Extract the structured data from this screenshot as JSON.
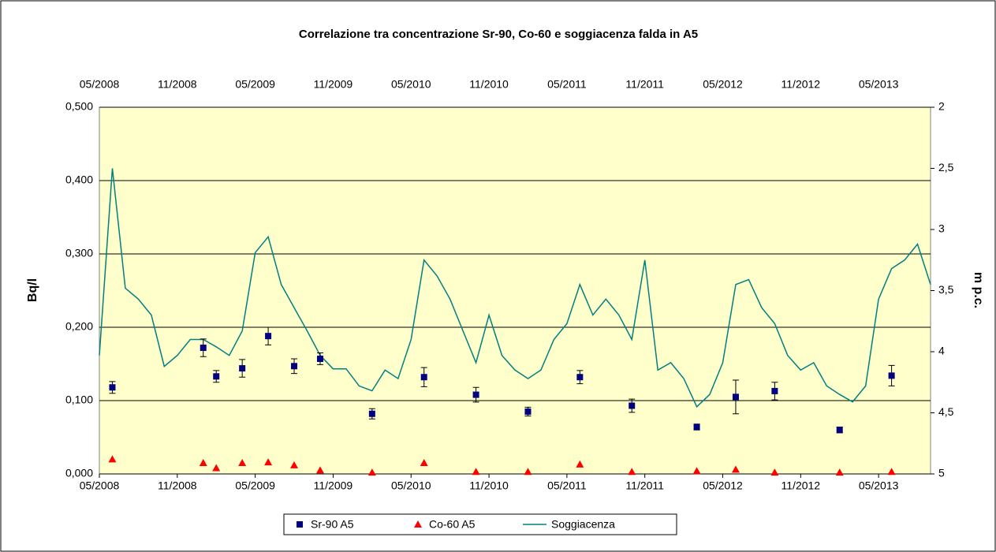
{
  "chart_data": {
    "type": "combo",
    "title": "Correlazione tra concentrazione Sr-90, Co-60 e soggiacenza falda in A5",
    "ylabel": "Bq/l",
    "y2label": "m p.c.",
    "xlim": [
      "05/2008",
      "09/2013"
    ],
    "xticks": [
      "05/2008",
      "11/2008",
      "05/2009",
      "11/2009",
      "05/2010",
      "11/2010",
      "05/2011",
      "11/2011",
      "05/2012",
      "11/2012",
      "05/2013"
    ],
    "ylim": [
      0,
      0.5
    ],
    "yticks": [
      {
        "value": 0,
        "label": "0,000"
      },
      {
        "value": 0.1,
        "label": "0,100"
      },
      {
        "value": 0.2,
        "label": "0,200"
      },
      {
        "value": 0.3,
        "label": "0,300"
      },
      {
        "value": 0.4,
        "label": "0,400"
      },
      {
        "value": 0.5,
        "label": "0,500"
      }
    ],
    "y2lim": [
      5,
      2
    ],
    "y2ticks": [
      2,
      {
        "value": 2.5,
        "label": "2,5"
      },
      3,
      {
        "value": 3.5,
        "label": "3,5"
      },
      4,
      {
        "value": 4.5,
        "label": "4,5"
      },
      5
    ],
    "grid": true,
    "legend": "bottom",
    "series": [
      {
        "name": "Sr-90 A5",
        "type": "scatter",
        "marker": "square",
        "color": "#000080",
        "x": [
          "06/2008",
          "01/2009",
          "02/2009",
          "04/2009",
          "06/2009",
          "08/2009",
          "10/2009",
          "02/2010",
          "06/2010",
          "10/2010",
          "02/2011",
          "06/2011",
          "10/2011",
          "03/2012",
          "06/2012",
          "09/2012",
          "02/2013",
          "06/2013"
        ],
        "values": [
          0.118,
          0.172,
          0.133,
          0.144,
          0.188,
          0.147,
          0.157,
          0.082,
          0.132,
          0.108,
          0.085,
          0.132,
          0.093,
          0.064,
          0.105,
          0.113,
          0.06,
          0.134
        ],
        "errors": [
          0.008,
          0.012,
          0.008,
          0.012,
          0.012,
          0.01,
          0.008,
          0.007,
          0.013,
          0.01,
          0.006,
          0.009,
          0.009,
          0.004,
          0.023,
          0.012,
          0.004,
          0.014
        ]
      },
      {
        "name": "Co-60 A5",
        "type": "scatter",
        "marker": "triangle",
        "color": "#ff0000",
        "x": [
          "06/2008",
          "01/2009",
          "02/2009",
          "04/2009",
          "06/2009",
          "08/2009",
          "10/2009",
          "02/2010",
          "06/2010",
          "10/2010",
          "02/2011",
          "06/2011",
          "10/2011",
          "03/2012",
          "06/2012",
          "09/2012",
          "02/2013",
          "06/2013"
        ],
        "values": [
          0.02,
          0.015,
          0.008,
          0.015,
          0.016,
          0.012,
          0.005,
          0.002,
          0.015,
          0.003,
          0.003,
          0.013,
          0.003,
          0.004,
          0.006,
          0.002,
          0.002,
          0.003
        ]
      },
      {
        "name": "Soggiacenza",
        "type": "line",
        "axis": "y2",
        "color": "#008080",
        "x": [
          "05/2008",
          "06/2008",
          "07/2008",
          "08/2008",
          "09/2008",
          "10/2008",
          "11/2008",
          "12/2008",
          "01/2009",
          "02/2009",
          "03/2009",
          "04/2009",
          "05/2009",
          "06/2009",
          "07/2009",
          "08/2009",
          "09/2009",
          "10/2009",
          "11/2009",
          "12/2009",
          "01/2010",
          "02/2010",
          "03/2010",
          "04/2010",
          "05/2010",
          "06/2010",
          "07/2010",
          "08/2010",
          "09/2010",
          "10/2010",
          "11/2010",
          "12/2010",
          "01/2011",
          "02/2011",
          "03/2011",
          "04/2011",
          "05/2011",
          "06/2011",
          "07/2011",
          "08/2011",
          "09/2011",
          "10/2011",
          "11/2011",
          "12/2011",
          "01/2012",
          "02/2012",
          "03/2012",
          "04/2012",
          "05/2012",
          "06/2012",
          "07/2012",
          "08/2012",
          "09/2012",
          "10/2012",
          "11/2012",
          "12/2012",
          "01/2013",
          "02/2013",
          "03/2013",
          "04/2013",
          "05/2013",
          "06/2013",
          "07/2013",
          "08/2013",
          "09/2013"
        ],
        "values": [
          4.03,
          2.5,
          3.48,
          3.57,
          3.7,
          4.12,
          4.03,
          3.9,
          3.9,
          3.96,
          4.03,
          3.83,
          3.19,
          3.06,
          3.45,
          3.64,
          3.83,
          4.03,
          4.14,
          4.14,
          4.28,
          4.32,
          4.15,
          4.22,
          3.9,
          3.25,
          3.38,
          3.57,
          3.83,
          4.09,
          3.7,
          4.03,
          4.15,
          4.22,
          4.15,
          3.9,
          3.77,
          3.45,
          3.7,
          3.57,
          3.7,
          3.9,
          3.25,
          4.15,
          4.09,
          4.22,
          4.45,
          4.35,
          4.09,
          3.45,
          3.41,
          3.64,
          3.77,
          4.03,
          4.15,
          4.09,
          4.28,
          4.35,
          4.41,
          4.28,
          3.57,
          3.32,
          3.25,
          3.12,
          3.45
        ]
      }
    ]
  }
}
